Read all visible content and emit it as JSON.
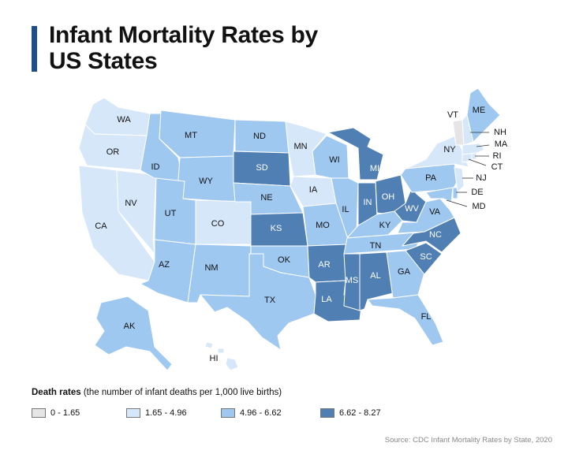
{
  "title": "Infant Mortality Rates by US States",
  "legend": {
    "heading_bold": "Death rates",
    "heading_rest": "(the number of infant deaths per 1,000 live births)",
    "items": [
      {
        "label": "0 - 1.65",
        "color": "#e5e5e5"
      },
      {
        "label": "1.65 - 4.96",
        "color": "#d6e7fa"
      },
      {
        "label": "4.96 - 6.62",
        "color": "#9fc8f1"
      },
      {
        "label": "6.62 - 8.27",
        "color": "#4f7fb3"
      }
    ]
  },
  "source": "Source: CDC Infant Mortality Rates by State, 2020",
  "colors": {
    "c0": "#e5e5e5",
    "c1": "#d6e7fa",
    "c2": "#9fc8f1",
    "c3": "#4f7fb3",
    "accent": "#1f4e8c"
  },
  "states": {
    "WA": "c1",
    "OR": "c1",
    "CA": "c1",
    "NV": "c1",
    "ID": "c2",
    "MT": "c2",
    "WY": "c2",
    "UT": "c2",
    "AZ": "c2",
    "CO": "c1",
    "NM": "c2",
    "ND": "c2",
    "SD": "c3",
    "NE": "c2",
    "KS": "c3",
    "OK": "c2",
    "TX": "c2",
    "MN": "c1",
    "IA": "c1",
    "MO": "c2",
    "AR": "c3",
    "LA": "c3",
    "WI": "c2",
    "IL": "c2",
    "MI": "c3",
    "IN": "c3",
    "OH": "c3",
    "KY": "c2",
    "TN": "c2",
    "MS": "c3",
    "AL": "c3",
    "GA": "c2",
    "FL": "c2",
    "SC": "c3",
    "NC": "c3",
    "VA": "c2",
    "WV": "c3",
    "PA": "c2",
    "NY": "c1",
    "VT": "c0",
    "ME": "c2",
    "NH": "c1",
    "MA": "c1",
    "RI": "c1",
    "CT": "c1",
    "NJ": "c1",
    "DE": "c2",
    "MD": "c2",
    "AK": "c2",
    "HI": "c1"
  }
}
